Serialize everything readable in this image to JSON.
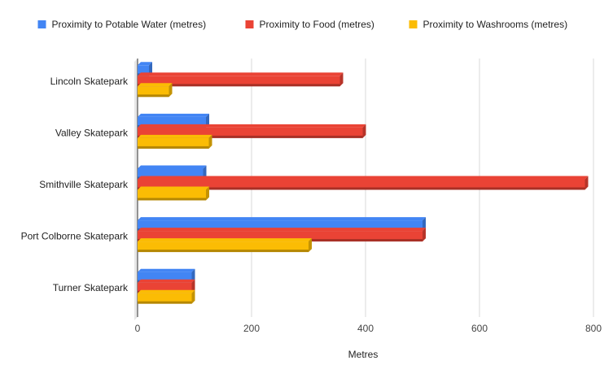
{
  "chart_data": {
    "type": "bar",
    "orientation": "horizontal",
    "style": "3d",
    "categories": [
      "Lincoln Skatepark",
      "Valley Skatepark",
      "Smithville Skatepark",
      "Port Colborne Skatepark",
      "Turner Skatepark"
    ],
    "series": [
      {
        "name": "Proximity to Potable Water (metres)",
        "color": "#4285f4",
        "values": [
          20,
          120,
          115,
          500,
          95
        ]
      },
      {
        "name": "Proximity to Food (metres)",
        "color": "#ea4335",
        "values": [
          355,
          395,
          785,
          500,
          95
        ]
      },
      {
        "name": "Proximity to Washrooms (metres)",
        "color": "#fbbc04",
        "values": [
          55,
          125,
          120,
          300,
          95
        ]
      }
    ],
    "xlabel": "Metres",
    "ylabel": "",
    "xlim": [
      0,
      800
    ],
    "xticks": [
      0,
      200,
      400,
      600,
      800
    ],
    "grid": true,
    "legend_position": "top"
  }
}
